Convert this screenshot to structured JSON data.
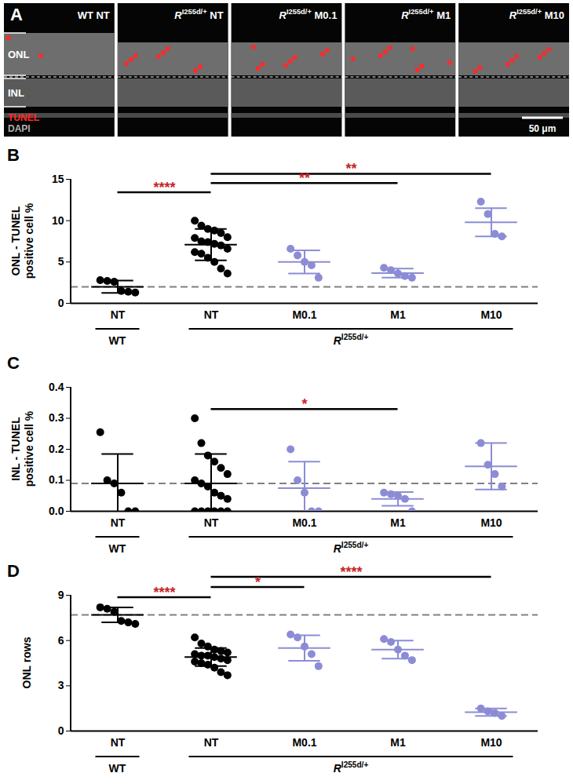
{
  "panel_a": {
    "letter": "A",
    "images": [
      {
        "label": "WT NT"
      },
      {
        "label": {
          "base": "R",
          "superscript": "I255d/+",
          "suffix": "NT"
        }
      },
      {
        "label": {
          "base": "R",
          "superscript": "I255d/+",
          "suffix": "M0.1"
        }
      },
      {
        "label": {
          "base": "R",
          "superscript": "I255d/+",
          "suffix": "M1"
        }
      },
      {
        "label": {
          "base": "R",
          "superscript": "I255d/+",
          "suffix": "M10"
        }
      }
    ],
    "layers": [
      "ONL",
      "INL"
    ],
    "stains": [
      {
        "text": "TUNEL",
        "color": "#ff2a2a"
      },
      {
        "text": "DAPI",
        "color": "#b0b0b0"
      }
    ],
    "scale_bar": "50 μm"
  },
  "chart_data": [
    {
      "letter": "B",
      "type": "scatter",
      "marker": "circle",
      "y_label": "ONL - TUNEL positive cell %",
      "categories": [
        "NT",
        "NT",
        "M0.1",
        "M1",
        "M10"
      ],
      "groups": [
        {
          "label": "WT",
          "span": [
            0,
            0
          ]
        },
        {
          "label": {
            "base": "R",
            "superscript": "I255d/+"
          },
          "span": [
            1,
            4
          ]
        }
      ],
      "colors": [
        "#000000",
        "#000000",
        "#8c8cd6",
        "#8c8cd6",
        "#8c8cd6"
      ],
      "values": [
        [
          2.8,
          2.7,
          2.6,
          1.5,
          1.4,
          1.3
        ],
        [
          10.0,
          9.4,
          9.0,
          8.8,
          8.5,
          8.0,
          7.9,
          7.5,
          7.4,
          7.2,
          7.0,
          6.6,
          6.2,
          6.0,
          5.5,
          5.0,
          4.2,
          3.6
        ],
        [
          6.6,
          5.8,
          5.0,
          4.6,
          3.1
        ],
        [
          4.3,
          4.0,
          3.6,
          3.3,
          3.1
        ],
        [
          12.3,
          10.8,
          8.4,
          8.1
        ]
      ],
      "mean": [
        2.0,
        7.1,
        5.0,
        3.65,
        9.8
      ],
      "sd": [
        0.75,
        1.9,
        1.4,
        0.55,
        1.7
      ],
      "reference_line": 2.0,
      "comparisons": [
        {
          "from": 0,
          "to": 1,
          "label": "****"
        },
        {
          "from": 1,
          "to": 3,
          "label": "**"
        },
        {
          "from": 1,
          "to": 4,
          "label": "**"
        }
      ],
      "comparison_color": "#c62828",
      "ylim": [
        0,
        15
      ],
      "yticks": [
        0,
        5,
        10,
        15
      ]
    },
    {
      "letter": "C",
      "type": "scatter",
      "marker": "circle",
      "y_label": "INL - TUNEL positive cell %",
      "categories": [
        "NT",
        "NT",
        "M0.1",
        "M1",
        "M10"
      ],
      "groups": [
        {
          "label": "WT",
          "span": [
            0,
            0
          ]
        },
        {
          "label": {
            "base": "R",
            "superscript": "I255d/+"
          },
          "span": [
            1,
            4
          ]
        }
      ],
      "colors": [
        "#000000",
        "#000000",
        "#8c8cd6",
        "#8c8cd6",
        "#8c8cd6"
      ],
      "values": [
        [
          0.255,
          0.1,
          0.09,
          0.06,
          0.0,
          0.0
        ],
        [
          0.3,
          0.22,
          0.18,
          0.16,
          0.14,
          0.12,
          0.1,
          0.09,
          0.08,
          0.06,
          0.05,
          0.04,
          0.0,
          0.0,
          0.0,
          0.0,
          0.0,
          0.0
        ],
        [
          0.2,
          0.1,
          0.06,
          0.0,
          0.0
        ],
        [
          0.06,
          0.055,
          0.05,
          0.04,
          0.0
        ],
        [
          0.22,
          0.15,
          0.12,
          0.08
        ]
      ],
      "mean": [
        0.09,
        0.09,
        0.075,
        0.04,
        0.145
      ],
      "sd": [
        0.095,
        0.095,
        0.085,
        0.022,
        0.075
      ],
      "reference_line": 0.09,
      "comparisons": [
        {
          "from": 1,
          "to": 3,
          "label": "*"
        }
      ],
      "comparison_color": "#c62828",
      "ylim": [
        0,
        0.4
      ],
      "yticks": [
        {
          "value": 0,
          "label": "0.0"
        },
        0.1,
        0.2,
        0.3,
        0.4
      ]
    },
    {
      "letter": "D",
      "type": "scatter",
      "marker": "circle",
      "y_label": "ONL rows",
      "categories": [
        "NT",
        "NT",
        "M0.1",
        "M1",
        "M10"
      ],
      "groups": [
        {
          "label": "WT",
          "span": [
            0,
            0
          ]
        },
        {
          "label": {
            "base": "R",
            "superscript": "I255d/+"
          },
          "span": [
            1,
            4
          ]
        }
      ],
      "colors": [
        "#000000",
        "#000000",
        "#8c8cd6",
        "#8c8cd6",
        "#8c8cd6"
      ],
      "values": [
        [
          8.2,
          8.1,
          7.9,
          7.3,
          7.2,
          7.1
        ],
        [
          6.2,
          5.8,
          5.6,
          5.4,
          5.3,
          5.2,
          5.1,
          5.0,
          5.0,
          4.9,
          4.8,
          4.7,
          4.6,
          4.5,
          4.4,
          4.2,
          3.9,
          3.7
        ],
        [
          6.4,
          6.2,
          5.6,
          5.1,
          4.3
        ],
        [
          6.1,
          5.9,
          5.4,
          5.0,
          4.7
        ],
        [
          1.5,
          1.3,
          1.2,
          1.0
        ]
      ],
      "mean": [
        7.7,
        4.9,
        5.5,
        5.4,
        1.25
      ],
      "sd": [
        0.5,
        0.6,
        0.85,
        0.6,
        0.25
      ],
      "reference_line": 7.7,
      "comparisons": [
        {
          "from": 0,
          "to": 1,
          "label": "****"
        },
        {
          "from": 1,
          "to": 2,
          "label": "*"
        },
        {
          "from": 1,
          "to": 4,
          "label": "****"
        }
      ],
      "comparison_color": "#c62828",
      "ylim": [
        0,
        9
      ],
      "yticks": [
        0,
        3,
        6,
        9
      ]
    }
  ]
}
